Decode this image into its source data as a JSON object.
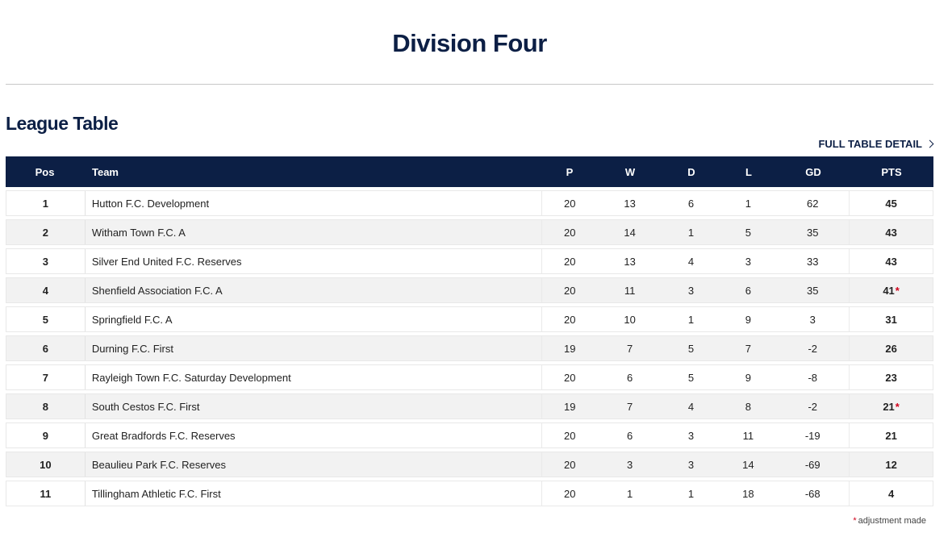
{
  "page": {
    "division_title": "Division Four",
    "section_title": "League Table",
    "full_table_link": "FULL TABLE DETAIL"
  },
  "table": {
    "headers": {
      "pos": "Pos",
      "team": "Team",
      "p": "P",
      "w": "W",
      "d": "D",
      "l": "L",
      "gd": "GD",
      "pts": "PTS"
    },
    "rows": [
      {
        "pos": "1",
        "team": "Hutton F.C. Development",
        "p": "20",
        "w": "13",
        "d": "6",
        "l": "1",
        "gd": "62",
        "pts": "45",
        "adjusted": false
      },
      {
        "pos": "2",
        "team": "Witham Town F.C. A",
        "p": "20",
        "w": "14",
        "d": "1",
        "l": "5",
        "gd": "35",
        "pts": "43",
        "adjusted": false
      },
      {
        "pos": "3",
        "team": "Silver End United F.C. Reserves",
        "p": "20",
        "w": "13",
        "d": "4",
        "l": "3",
        "gd": "33",
        "pts": "43",
        "adjusted": false
      },
      {
        "pos": "4",
        "team": "Shenfield Association F.C. A",
        "p": "20",
        "w": "11",
        "d": "3",
        "l": "6",
        "gd": "35",
        "pts": "41",
        "adjusted": true
      },
      {
        "pos": "5",
        "team": "Springfield F.C. A",
        "p": "20",
        "w": "10",
        "d": "1",
        "l": "9",
        "gd": "3",
        "pts": "31",
        "adjusted": false
      },
      {
        "pos": "6",
        "team": "Durning F.C. First",
        "p": "19",
        "w": "7",
        "d": "5",
        "l": "7",
        "gd": "-2",
        "pts": "26",
        "adjusted": false
      },
      {
        "pos": "7",
        "team": "Rayleigh Town F.C. Saturday Development",
        "p": "20",
        "w": "6",
        "d": "5",
        "l": "9",
        "gd": "-8",
        "pts": "23",
        "adjusted": false
      },
      {
        "pos": "8",
        "team": "South Cestos F.C. First",
        "p": "19",
        "w": "7",
        "d": "4",
        "l": "8",
        "gd": "-2",
        "pts": "21",
        "adjusted": true
      },
      {
        "pos": "9",
        "team": "Great Bradfords F.C. Reserves",
        "p": "20",
        "w": "6",
        "d": "3",
        "l": "11",
        "gd": "-19",
        "pts": "21",
        "adjusted": false
      },
      {
        "pos": "10",
        "team": "Beaulieu Park F.C. Reserves",
        "p": "20",
        "w": "3",
        "d": "3",
        "l": "14",
        "gd": "-69",
        "pts": "12",
        "adjusted": false
      },
      {
        "pos": "11",
        "team": "Tillingham Athletic F.C. First",
        "p": "20",
        "w": "1",
        "d": "1",
        "l": "18",
        "gd": "-68",
        "pts": "4",
        "adjusted": false
      }
    ],
    "adjustment_marker": "*"
  },
  "footnote": {
    "marker": "*",
    "text": "adjustment made"
  },
  "colors": {
    "brand_navy": "#0c1f45",
    "adjustment_red": "#d0021b"
  }
}
